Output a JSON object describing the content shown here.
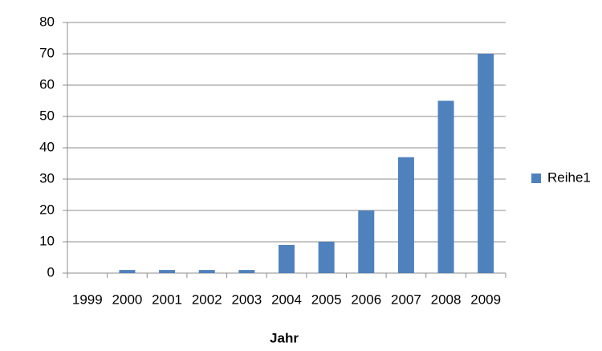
{
  "chart_data": {
    "type": "bar",
    "x_label": "Jahr",
    "categories": [
      "1999",
      "2000",
      "2001",
      "2002",
      "2003",
      "2004",
      "2005",
      "2006",
      "2007",
      "2008",
      "2009"
    ],
    "series": [
      {
        "name": "Reihe1",
        "color": "#4f81bd",
        "values": [
          0,
          1,
          1,
          1,
          1,
          9,
          10,
          20,
          37,
          55,
          70
        ]
      }
    ],
    "ylim": [
      0,
      80
    ],
    "yticks": [
      0,
      10,
      20,
      30,
      40,
      50,
      60,
      70,
      80
    ],
    "grid": true,
    "legend": "right"
  }
}
